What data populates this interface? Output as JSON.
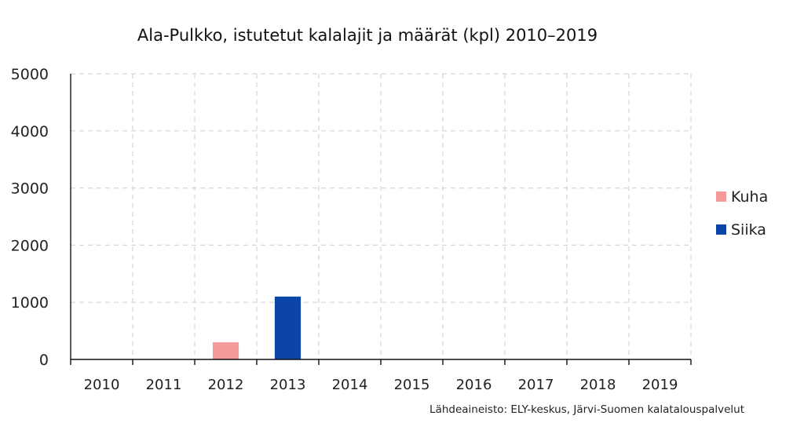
{
  "chart_data": {
    "type": "bar",
    "title": "Ala-Pulkko, istutetut kalalajit ja määrät (kpl) 2010–2019",
    "categories": [
      "2010",
      "2011",
      "2012",
      "2013",
      "2014",
      "2015",
      "2016",
      "2017",
      "2018",
      "2019"
    ],
    "series": [
      {
        "name": "Kuha",
        "color": "#f59a9a",
        "values": [
          0,
          0,
          300,
          0,
          0,
          0,
          0,
          0,
          0,
          0
        ]
      },
      {
        "name": "Siika",
        "color": "#0b45a8",
        "values": [
          0,
          0,
          0,
          1100,
          0,
          0,
          0,
          0,
          0,
          0
        ]
      }
    ],
    "ylim": [
      0,
      5000
    ],
    "yticks": [
      "0",
      "1000",
      "2000",
      "3000",
      "4000",
      "5000"
    ],
    "xlabel": "",
    "ylabel": "",
    "grid": true,
    "legend_position": "right",
    "source": "Lähdeaineisto: ELY-keskus, Järvi-Suomen kalatalouspalvelut"
  }
}
